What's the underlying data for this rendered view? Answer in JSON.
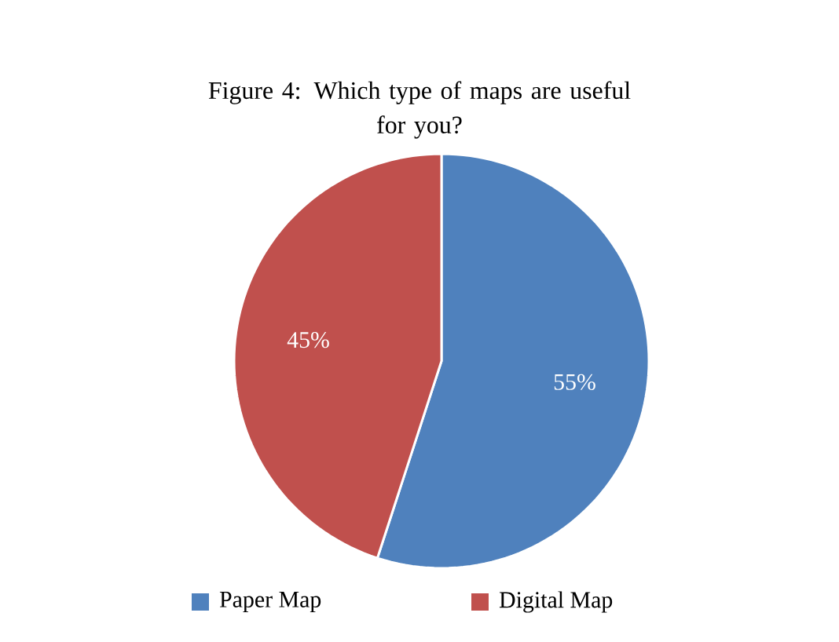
{
  "chart_data": {
    "type": "pie",
    "title": "Figure 4: Which type of maps are useful for you?",
    "categories": [
      "Paper Map",
      "Digital Map"
    ],
    "values": [
      55,
      45
    ],
    "colors": [
      "#4f81bd",
      "#c0504d"
    ],
    "value_labels": [
      "55%",
      "45%"
    ],
    "legend": "bottom"
  }
}
